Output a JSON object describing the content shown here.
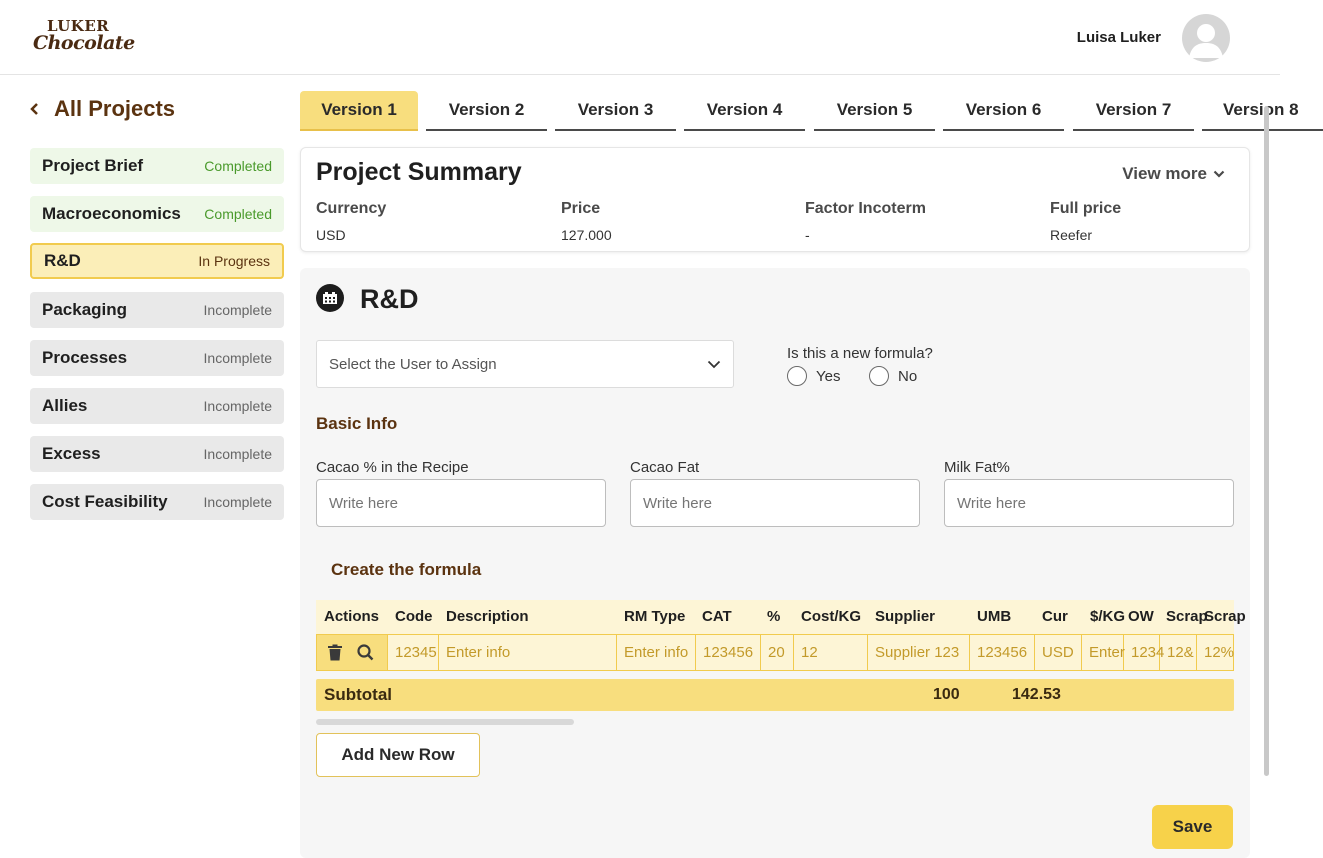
{
  "brand": {
    "logo_line1": "LUKER",
    "logo_line2": "Chocolate"
  },
  "user": {
    "name": "Luisa Luker"
  },
  "sidebar": {
    "back_label": "All Projects",
    "items": [
      {
        "label": "Project Brief",
        "status": "Completed"
      },
      {
        "label": "Macroeconomics",
        "status": "Completed"
      },
      {
        "label": "R&D",
        "status": "In Progress"
      },
      {
        "label": "Packaging",
        "status": "Incomplete"
      },
      {
        "label": "Processes",
        "status": "Incomplete"
      },
      {
        "label": "Allies",
        "status": "Incomplete"
      },
      {
        "label": "Excess",
        "status": "Incomplete"
      },
      {
        "label": "Cost Feasibility",
        "status": "Incomplete"
      }
    ]
  },
  "versions": [
    "Version 1",
    "Version 2",
    "Version 3",
    "Version 4",
    "Version 5",
    "Version 6",
    "Version 7",
    "Version 8"
  ],
  "summary": {
    "title": "Project Summary",
    "view_more": "View more",
    "fields": [
      {
        "key": "Currency",
        "value": "USD"
      },
      {
        "key": "Price",
        "value": "127.000"
      },
      {
        "key": "Factor Incoterm",
        "value": "-"
      },
      {
        "key": "Full price",
        "value": "Reefer"
      }
    ]
  },
  "rd": {
    "title": "R&D",
    "assign_placeholder": "Select the User to Assign",
    "formula_question": "Is this a new formula?",
    "yes": "Yes",
    "no": "No",
    "basic_info": "Basic Info",
    "fields": [
      {
        "label": "Cacao % in the Recipe",
        "placeholder": "Write here"
      },
      {
        "label": "Cacao Fat",
        "placeholder": "Write here"
      },
      {
        "label": "Milk Fat%",
        "placeholder": "Write here"
      }
    ],
    "create_formula": "Create the formula",
    "table": {
      "headers": [
        "Actions",
        "Code",
        "Description",
        "RM Type",
        "CAT",
        "%",
        "Cost/KG",
        "Supplier",
        "UMB",
        "Cur",
        "$/KG",
        "OW",
        "Scrap",
        "Scrap"
      ],
      "row": [
        "12345",
        "Enter info",
        "Enter info",
        "123456",
        "20",
        "12",
        "Supplier 123",
        "123456",
        "USD",
        "Enter",
        "1234",
        "12&",
        "12%"
      ],
      "subtotal_label": "Subtotal",
      "subtotal_percent": "100",
      "subtotal_cost": "142.53"
    },
    "add_row": "Add New Row",
    "save": "Save"
  }
}
